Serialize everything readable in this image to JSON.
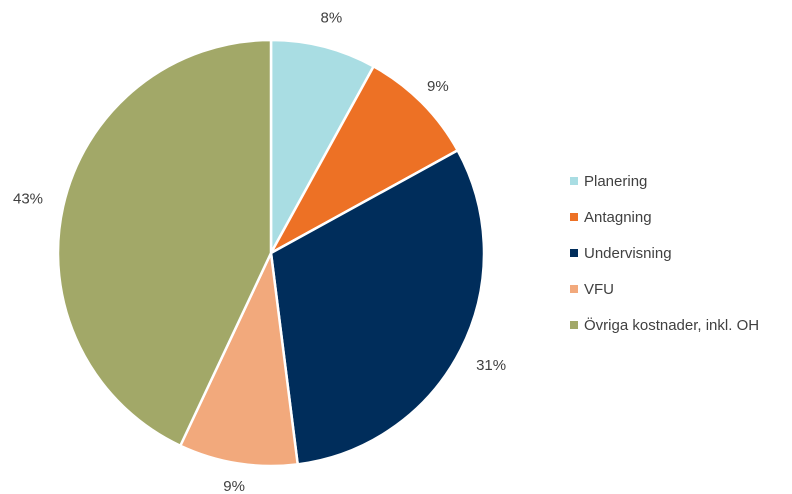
{
  "chart_data": {
    "type": "pie",
    "title": "",
    "slices": [
      {
        "label": "Planering",
        "value": 8,
        "display": "8%",
        "color": "#A9DDE3"
      },
      {
        "label": "Antagning",
        "value": 9,
        "display": "9%",
        "color": "#ED7125"
      },
      {
        "label": "Undervisning",
        "value": 31,
        "display": "31%",
        "color": "#002D5B"
      },
      {
        "label": "VFU",
        "value": 9,
        "display": "9%",
        "color": "#F2A97C"
      },
      {
        "label": "Övriga kostnader, inkl. OH",
        "value": 43,
        "display": "43%",
        "color": "#A2A868"
      }
    ],
    "legend_position": "right",
    "start_angle": "12 o'clock",
    "direction": "clockwise"
  }
}
